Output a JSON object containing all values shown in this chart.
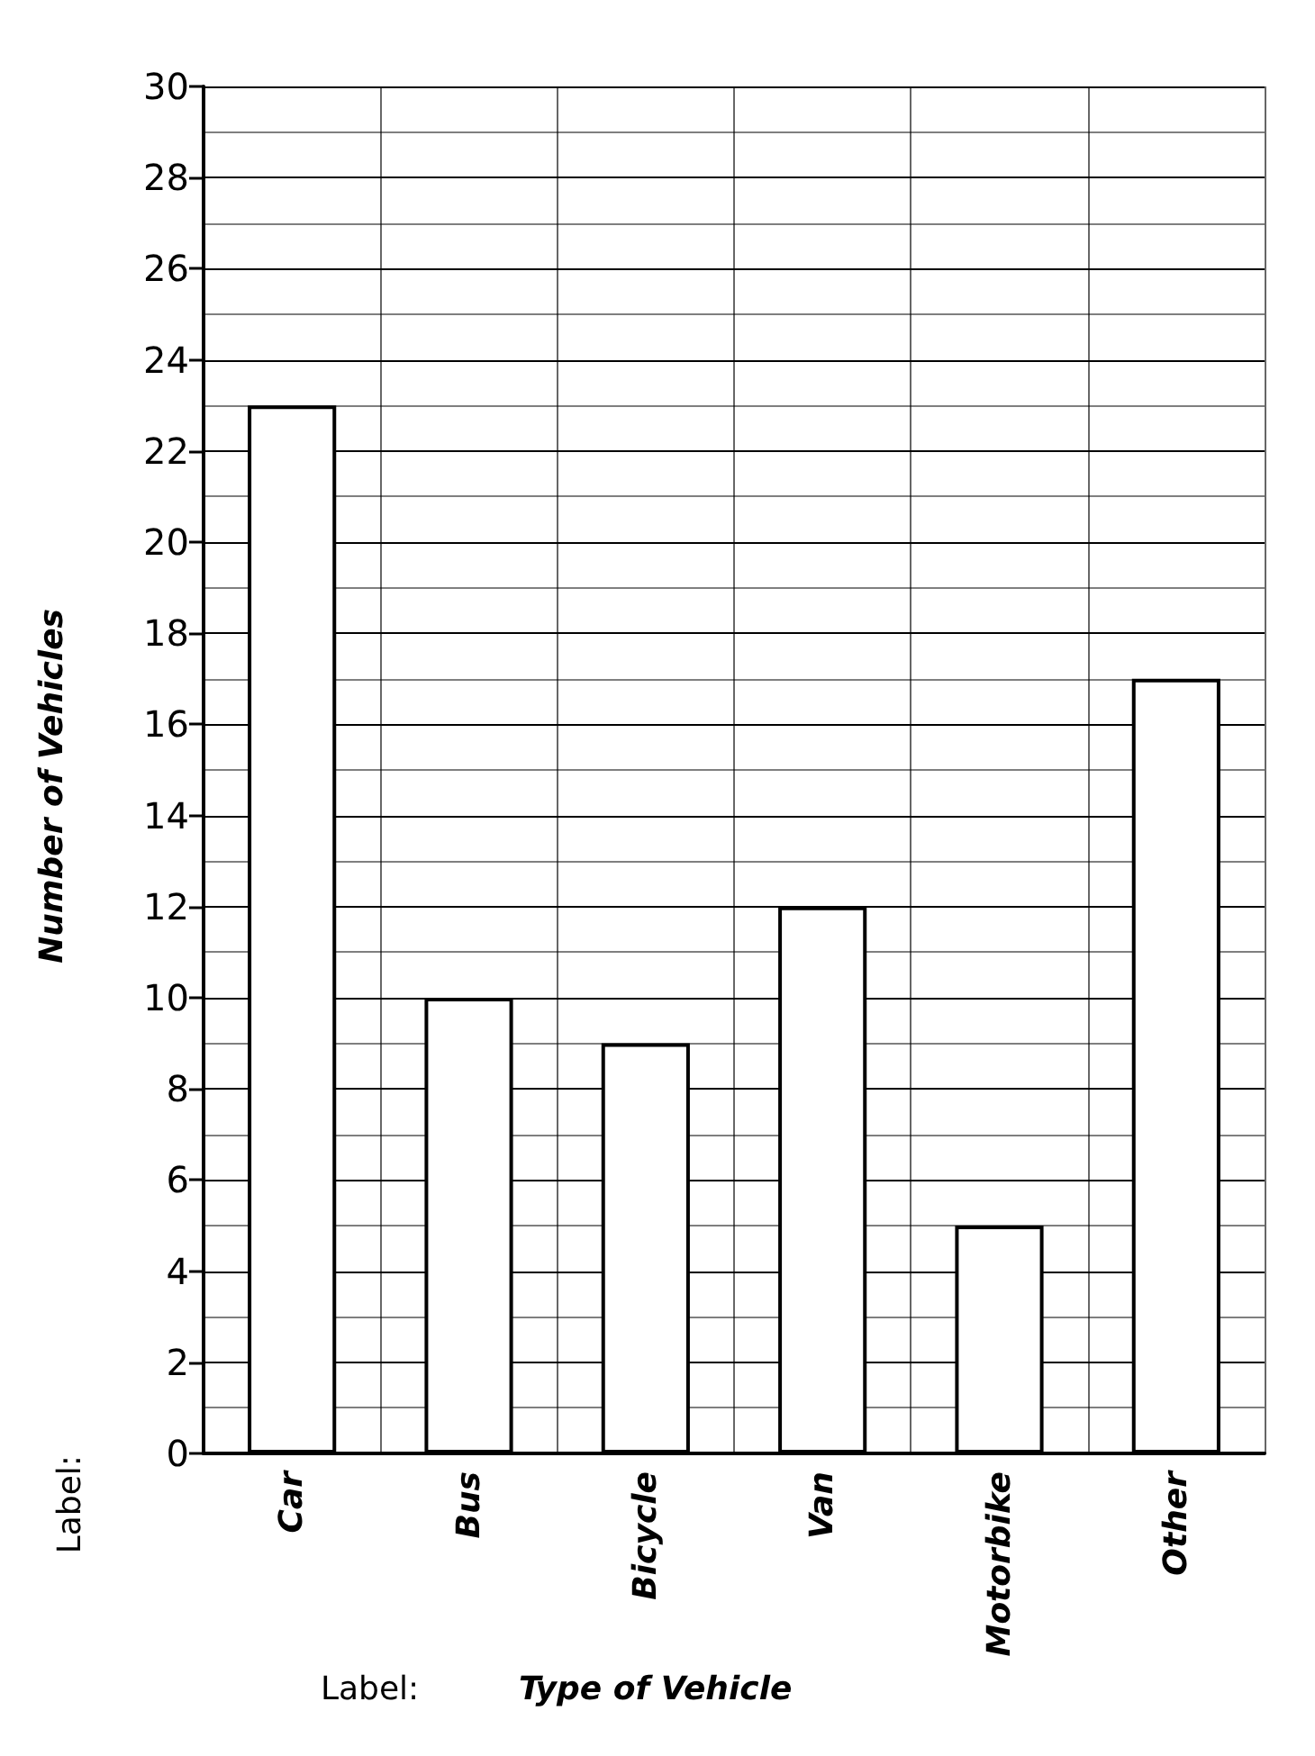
{
  "chart_data": {
    "type": "bar",
    "xlabel": "Type of Vehicle",
    "ylabel": "Number of Vehicles",
    "categories": [
      "Car",
      "Bus",
      "Bicycle",
      "Van",
      "Motorbike",
      "Other"
    ],
    "values": [
      23,
      10,
      9,
      12,
      5,
      17
    ],
    "color": "#ffffff",
    "ylim": [
      0,
      30
    ],
    "yticks": [
      0,
      2,
      4,
      6,
      8,
      10,
      12,
      14,
      16,
      18,
      20,
      22,
      24,
      26,
      28,
      30
    ],
    "grid": true,
    "annotations": [
      "Label:",
      "Label:"
    ]
  }
}
